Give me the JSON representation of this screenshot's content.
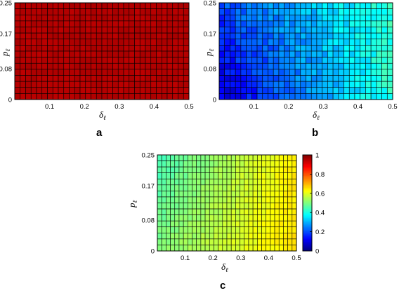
{
  "chart_data": [
    {
      "type": "heatmap",
      "panel_label": "a",
      "x_ticks": [
        "0.1",
        "0.2",
        "0.3",
        "0.4",
        "0.5"
      ],
      "y_ticks": [
        "0",
        "0.08",
        "0.17",
        "0.25"
      ],
      "xlim": [
        0,
        0.5
      ],
      "ylim": [
        0,
        0.25
      ],
      "xlabel": "δ",
      "xlabel_sub": "ℓ",
      "ylabel": "p",
      "ylabel_sub": "ℓ",
      "grid": {
        "cols": 32,
        "rows": 16
      },
      "value_at_corners": {
        "bottom_left": 0.95,
        "bottom_right": 0.95,
        "top_left": 0.95,
        "top_right": 0.95
      },
      "colormap": "jet",
      "clim": [
        0,
        1
      ]
    },
    {
      "type": "heatmap",
      "panel_label": "b",
      "x_ticks": [
        "0.1",
        "0.2",
        "0.3",
        "0.4",
        "0.5"
      ],
      "y_ticks": [
        "0",
        "0.08",
        "0.17",
        "0.25"
      ],
      "xlim": [
        0,
        0.5
      ],
      "ylim": [
        0,
        0.25
      ],
      "xlabel": "δ",
      "xlabel_sub": "ℓ",
      "ylabel": "p",
      "ylabel_sub": "ℓ",
      "grid": {
        "cols": 32,
        "rows": 16
      },
      "value_at_corners": {
        "bottom_left": 0.08,
        "bottom_right": 0.42,
        "top_left": 0.2,
        "top_right": 0.42
      },
      "colormap": "jet",
      "clim": [
        0,
        1
      ]
    },
    {
      "type": "heatmap",
      "panel_label": "c",
      "x_ticks": [
        "0.1",
        "0.2",
        "0.3",
        "0.4",
        "0.5"
      ],
      "y_ticks": [
        "0",
        "0.08",
        "0.17",
        "0.25"
      ],
      "xlim": [
        0,
        0.5
      ],
      "ylim": [
        0,
        0.25
      ],
      "xlabel": "δ",
      "xlabel_sub": "ℓ",
      "ylabel": "p",
      "ylabel_sub": "ℓ",
      "grid": {
        "cols": 32,
        "rows": 16
      },
      "value_at_corners": {
        "bottom_left": 0.5,
        "bottom_right": 0.66,
        "top_left": 0.44,
        "top_right": 0.64
      },
      "colormap": "jet",
      "clim": [
        0,
        1
      ],
      "colorbar": {
        "ticks": [
          "0",
          "0.2",
          "0.4",
          "0.6",
          "0.8",
          "1"
        ],
        "range": [
          0,
          1
        ]
      }
    }
  ]
}
